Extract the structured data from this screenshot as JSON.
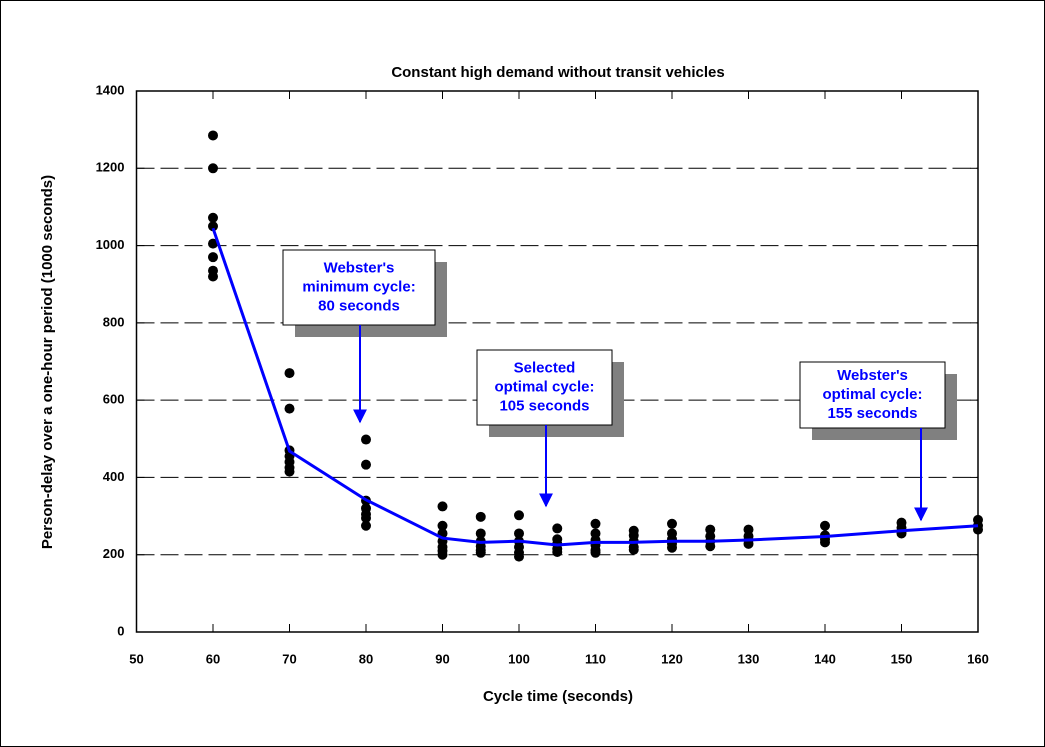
{
  "chart_data": {
    "type": "scatter",
    "title": "Constant high demand without transit vehicles",
    "x_label": "Cycle time (seconds)",
    "y_label": "Person-delay over a one-hour period (1000 seconds)",
    "xlim": [
      50,
      160
    ],
    "ylim": [
      0,
      1400
    ],
    "xticks": [
      50,
      60,
      70,
      80,
      90,
      100,
      110,
      120,
      130,
      140,
      150,
      160
    ],
    "yticks": [
      0,
      200,
      400,
      600,
      800,
      1000,
      1200,
      1400
    ],
    "grid": true,
    "series": [
      {
        "type": "scatter",
        "color": "#000000",
        "x": [
          60,
          60,
          60,
          60,
          60,
          60,
          60,
          60,
          70,
          70,
          70,
          70,
          70,
          70,
          70,
          80,
          80,
          80,
          80,
          80,
          80,
          80,
          90,
          90,
          90,
          90,
          90,
          90,
          90,
          95,
          95,
          95,
          95,
          95,
          95,
          100,
          100,
          100,
          100,
          100,
          100,
          105,
          105,
          105,
          105,
          105,
          110,
          110,
          110,
          110,
          110,
          110,
          115,
          115,
          115,
          115,
          115,
          120,
          120,
          120,
          120,
          120,
          125,
          125,
          125,
          125,
          130,
          130,
          130,
          130,
          140,
          140,
          140,
          140,
          150,
          150,
          150,
          150,
          160,
          160,
          160
        ],
        "values": [
          1285,
          1200,
          1072,
          1050,
          1005,
          970,
          935,
          920,
          670,
          578,
          470,
          455,
          440,
          425,
          415,
          498,
          433,
          340,
          320,
          305,
          295,
          275,
          325,
          275,
          255,
          235,
          220,
          210,
          200,
          298,
          255,
          235,
          222,
          212,
          205,
          302,
          255,
          235,
          220,
          205,
          195,
          268,
          240,
          228,
          215,
          207,
          280,
          255,
          238,
          225,
          212,
          205,
          262,
          250,
          235,
          220,
          213,
          280,
          255,
          240,
          228,
          218,
          265,
          248,
          235,
          222,
          265,
          248,
          238,
          228,
          275,
          250,
          240,
          232,
          283,
          270,
          260,
          255,
          290,
          275,
          265
        ]
      },
      {
        "type": "line",
        "color": "#0000ff",
        "x": [
          60,
          70,
          80,
          90,
          95,
          100,
          105,
          110,
          115,
          120,
          125,
          130,
          140,
          150,
          160
        ],
        "values": [
          1045,
          468,
          342,
          243,
          232,
          235,
          225,
          232,
          232,
          235,
          235,
          238,
          247,
          262,
          275
        ]
      }
    ],
    "annotations": [
      {
        "lines": [
          "Webster's",
          "minimum cycle:",
          "80 seconds"
        ]
      },
      {
        "lines": [
          "Selected",
          "optimal cycle:",
          "105 seconds"
        ]
      },
      {
        "lines": [
          "Webster's",
          "optimal cycle:",
          "155 seconds"
        ]
      }
    ]
  }
}
